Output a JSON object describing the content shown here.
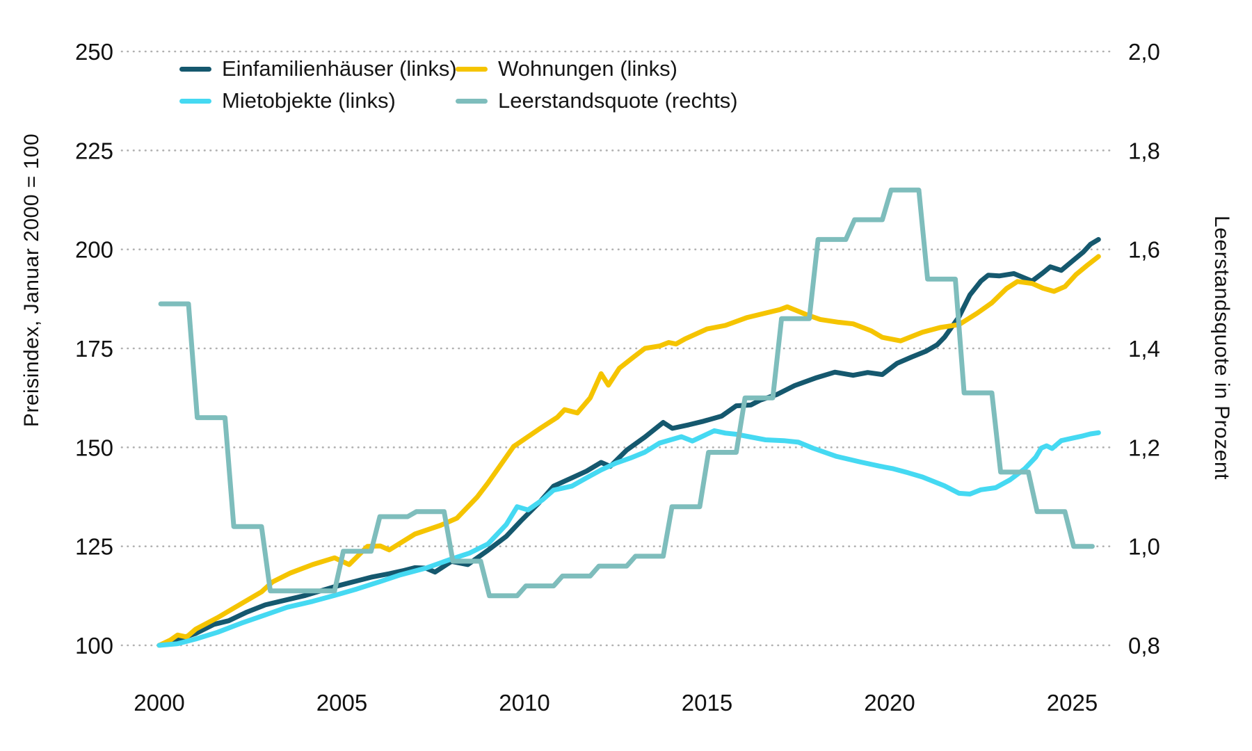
{
  "chart_data": {
    "type": "line",
    "title": "",
    "left_axis": {
      "label": "Preisindex, Januar 2000 = 100",
      "ticks": [
        250,
        225,
        200,
        175,
        150,
        125,
        100
      ],
      "range": [
        100,
        250
      ]
    },
    "right_axis": {
      "label": "Leerstandsquote in Prozent",
      "ticks": [
        "2,0",
        "1,8",
        "1,6",
        "1,4",
        "1,2",
        "1,0",
        "0,8"
      ],
      "tick_values": [
        2.0,
        1.8,
        1.6,
        1.4,
        1.2,
        1.0,
        0.8
      ],
      "range": [
        0.8,
        2.0
      ]
    },
    "x_axis": {
      "ticks": [
        2000,
        2005,
        2010,
        2015,
        2020,
        2025
      ],
      "range_years": [
        2000,
        2025.75
      ]
    },
    "grid": "dotted horizontal lines at every 25 index points / 0.2 percentage points",
    "legend_position": "top-left, two columns",
    "series": [
      {
        "name": "Einfamilienhäuser (links)",
        "axis": "left",
        "style": "line",
        "color": "#15586e",
        "points": [
          [
            2000.0,
            100
          ],
          [
            2000.3,
            101.0
          ],
          [
            2000.6,
            101.8
          ],
          [
            2001.0,
            103.0
          ],
          [
            2001.5,
            105.3
          ],
          [
            2001.9,
            106.2
          ],
          [
            2002.4,
            108.4
          ],
          [
            2002.9,
            110.2
          ],
          [
            2003.4,
            111.3
          ],
          [
            2004.0,
            112.6
          ],
          [
            2004.8,
            114.8
          ],
          [
            2005.3,
            116.0
          ],
          [
            2005.8,
            117.2
          ],
          [
            2006.3,
            118.1
          ],
          [
            2006.7,
            118.9
          ],
          [
            2007.0,
            119.6
          ],
          [
            2007.3,
            119.5
          ],
          [
            2007.55,
            118.5
          ],
          [
            2008.0,
            121.2
          ],
          [
            2008.45,
            120.4
          ],
          [
            2009.0,
            124.0
          ],
          [
            2009.5,
            127.5
          ],
          [
            2009.9,
            131.4
          ],
          [
            2010.4,
            136.0
          ],
          [
            2010.8,
            140.2
          ],
          [
            2011.3,
            142.3
          ],
          [
            2011.7,
            144.0
          ],
          [
            2012.1,
            146.2
          ],
          [
            2012.35,
            145.2
          ],
          [
            2012.8,
            149.3
          ],
          [
            2013.3,
            152.6
          ],
          [
            2013.8,
            156.3
          ],
          [
            2014.05,
            154.8
          ],
          [
            2014.5,
            155.7
          ],
          [
            2014.9,
            156.6
          ],
          [
            2015.4,
            157.9
          ],
          [
            2015.8,
            160.5
          ],
          [
            2016.2,
            160.7
          ],
          [
            2016.45,
            161.9
          ],
          [
            2016.9,
            163.3
          ],
          [
            2017.4,
            165.6
          ],
          [
            2018.0,
            167.6
          ],
          [
            2018.5,
            169.0
          ],
          [
            2019.0,
            168.2
          ],
          [
            2019.4,
            168.9
          ],
          [
            2019.8,
            168.4
          ],
          [
            2020.2,
            171.2
          ],
          [
            2020.6,
            172.8
          ],
          [
            2021.0,
            174.3
          ],
          [
            2021.3,
            175.9
          ],
          [
            2021.5,
            177.8
          ],
          [
            2021.9,
            183.0
          ],
          [
            2022.2,
            188.5
          ],
          [
            2022.5,
            192.0
          ],
          [
            2022.7,
            193.5
          ],
          [
            2023.0,
            193.3
          ],
          [
            2023.4,
            193.9
          ],
          [
            2023.9,
            192.0
          ],
          [
            2024.2,
            194.1
          ],
          [
            2024.4,
            195.6
          ],
          [
            2024.7,
            194.7
          ],
          [
            2025.0,
            197.0
          ],
          [
            2025.3,
            199.3
          ],
          [
            2025.5,
            201.3
          ],
          [
            2025.72,
            202.5
          ]
        ]
      },
      {
        "name": "Wohnungen (links)",
        "axis": "left",
        "style": "line",
        "color": "#f5c400",
        "points": [
          [
            2000.0,
            100
          ],
          [
            2000.3,
            101.3
          ],
          [
            2000.5,
            102.6
          ],
          [
            2000.75,
            102.1
          ],
          [
            2001.0,
            104.1
          ],
          [
            2001.6,
            107.0
          ],
          [
            2002.3,
            110.8
          ],
          [
            2002.8,
            113.5
          ],
          [
            2003.1,
            116.0
          ],
          [
            2003.6,
            118.3
          ],
          [
            2004.2,
            120.4
          ],
          [
            2004.8,
            122.1
          ],
          [
            2005.2,
            120.4
          ],
          [
            2005.7,
            125.0
          ],
          [
            2006.05,
            125.1
          ],
          [
            2006.3,
            124.1
          ],
          [
            2007.0,
            128.1
          ],
          [
            2007.7,
            130.3
          ],
          [
            2008.15,
            132.1
          ],
          [
            2008.7,
            137.4
          ],
          [
            2009.0,
            141.0
          ],
          [
            2009.7,
            150.2
          ],
          [
            2010.4,
            154.6
          ],
          [
            2010.9,
            157.6
          ],
          [
            2011.1,
            159.5
          ],
          [
            2011.45,
            158.7
          ],
          [
            2011.8,
            162.5
          ],
          [
            2012.1,
            168.6
          ],
          [
            2012.3,
            165.7
          ],
          [
            2012.6,
            170.0
          ],
          [
            2013.0,
            172.9
          ],
          [
            2013.3,
            175.0
          ],
          [
            2013.7,
            175.6
          ],
          [
            2013.95,
            176.5
          ],
          [
            2014.15,
            176.1
          ],
          [
            2014.4,
            177.4
          ],
          [
            2015.0,
            179.9
          ],
          [
            2015.5,
            180.8
          ],
          [
            2016.1,
            182.8
          ],
          [
            2016.55,
            183.8
          ],
          [
            2017.0,
            184.8
          ],
          [
            2017.2,
            185.5
          ],
          [
            2017.7,
            183.6
          ],
          [
            2018.1,
            182.3
          ],
          [
            2018.6,
            181.6
          ],
          [
            2019.0,
            181.2
          ],
          [
            2019.5,
            179.4
          ],
          [
            2019.8,
            177.8
          ],
          [
            2020.3,
            176.9
          ],
          [
            2020.9,
            179.1
          ],
          [
            2021.4,
            180.3
          ],
          [
            2021.9,
            181.0
          ],
          [
            2022.4,
            183.9
          ],
          [
            2022.8,
            186.5
          ],
          [
            2023.2,
            190.1
          ],
          [
            2023.5,
            191.9
          ],
          [
            2023.9,
            191.4
          ],
          [
            2024.2,
            190.2
          ],
          [
            2024.5,
            189.4
          ],
          [
            2024.8,
            190.6
          ],
          [
            2025.1,
            193.6
          ],
          [
            2025.4,
            195.9
          ],
          [
            2025.72,
            198.2
          ]
        ]
      },
      {
        "name": "Mietobjekte (links)",
        "axis": "left",
        "style": "line",
        "color": "#45d9f2",
        "points": [
          [
            2000.0,
            100
          ],
          [
            2000.5,
            100.4
          ],
          [
            2001.0,
            101.6
          ],
          [
            2001.6,
            103.3
          ],
          [
            2002.25,
            105.6
          ],
          [
            2003.0,
            108.0
          ],
          [
            2003.5,
            109.6
          ],
          [
            2004.2,
            111.1
          ],
          [
            2004.8,
            112.6
          ],
          [
            2005.4,
            114.2
          ],
          [
            2006.05,
            116.1
          ],
          [
            2006.6,
            117.8
          ],
          [
            2007.3,
            119.5
          ],
          [
            2008.0,
            121.8
          ],
          [
            2008.5,
            123.3
          ],
          [
            2009.0,
            125.6
          ],
          [
            2009.5,
            130.5
          ],
          [
            2009.8,
            135.0
          ],
          [
            2010.1,
            134.2
          ],
          [
            2010.5,
            136.8
          ],
          [
            2010.8,
            139.2
          ],
          [
            2011.3,
            140.2
          ],
          [
            2011.7,
            142.3
          ],
          [
            2012.1,
            144.3
          ],
          [
            2012.5,
            146.0
          ],
          [
            2012.9,
            147.3
          ],
          [
            2013.3,
            148.8
          ],
          [
            2013.7,
            151.1
          ],
          [
            2014.3,
            152.7
          ],
          [
            2014.6,
            151.6
          ],
          [
            2015.2,
            154.2
          ],
          [
            2015.5,
            153.6
          ],
          [
            2015.8,
            153.3
          ],
          [
            2016.6,
            151.9
          ],
          [
            2017.1,
            151.7
          ],
          [
            2017.5,
            151.3
          ],
          [
            2017.9,
            149.8
          ],
          [
            2018.55,
            147.7
          ],
          [
            2019.2,
            146.3
          ],
          [
            2019.7,
            145.3
          ],
          [
            2020.1,
            144.6
          ],
          [
            2020.5,
            143.6
          ],
          [
            2020.9,
            142.5
          ],
          [
            2021.5,
            140.3
          ],
          [
            2021.9,
            138.4
          ],
          [
            2022.2,
            138.2
          ],
          [
            2022.5,
            139.3
          ],
          [
            2022.9,
            139.8
          ],
          [
            2023.3,
            141.8
          ],
          [
            2023.7,
            144.6
          ],
          [
            2024.0,
            147.5
          ],
          [
            2024.15,
            149.8
          ],
          [
            2024.3,
            150.4
          ],
          [
            2024.45,
            149.7
          ],
          [
            2024.7,
            151.7
          ],
          [
            2025.0,
            152.3
          ],
          [
            2025.3,
            152.9
          ],
          [
            2025.5,
            153.4
          ],
          [
            2025.72,
            153.7
          ]
        ]
      },
      {
        "name": "Leerstandsquote (rechts)",
        "axis": "right",
        "style": "step",
        "color": "#7ebdbc",
        "years": [
          2000,
          2001,
          2002,
          2003,
          2004,
          2005,
          2006,
          2007,
          2008,
          2009,
          2010,
          2011,
          2012,
          2013,
          2014,
          2015,
          2016,
          2017,
          2018,
          2019,
          2020,
          2021,
          2022,
          2023,
          2024,
          2025
        ],
        "values": [
          1.49,
          1.26,
          1.04,
          0.91,
          0.91,
          0.99,
          1.06,
          1.07,
          0.97,
          0.9,
          0.92,
          0.94,
          0.96,
          0.98,
          1.08,
          1.19,
          1.3,
          1.46,
          1.62,
          1.66,
          1.72,
          1.54,
          1.31,
          1.15,
          1.07,
          1.0
        ]
      }
    ],
    "legend_order": [
      "Einfamilienhäuser (links)",
      "Wohnungen (links)",
      "Mietobjekte (links)",
      "Leerstandsquote (rechts)"
    ]
  }
}
